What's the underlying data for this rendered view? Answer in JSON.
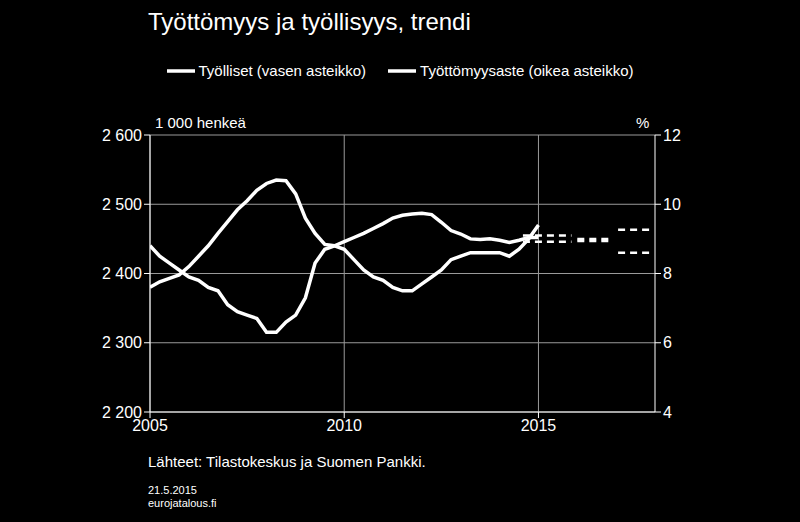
{
  "chart_data": {
    "type": "line",
    "title": "Työttömyys ja työllisyys, trendi",
    "ylabel": "1 000 henkeä",
    "y2label": "%",
    "source": "Lähteet:  Tilastokeskus ja Suomen Pankki.",
    "date": "21.5.2015",
    "site": "eurojatalous.fi",
    "legend": "top",
    "grid": true,
    "xlim": [
      2005,
      2018
    ],
    "xticks": [
      2005,
      2010,
      2015
    ],
    "ylim": [
      2200,
      2600
    ],
    "yticks": [
      {
        "value": 2200,
        "label": "2 200"
      },
      {
        "value": 2300,
        "label": "2 300"
      },
      {
        "value": 2400,
        "label": "2 400"
      },
      {
        "value": 2500,
        "label": "2 500"
      },
      {
        "value": 2600,
        "label": "2 600"
      }
    ],
    "y2lim": [
      4,
      12
    ],
    "y2ticks": [
      4,
      6,
      8,
      10,
      12
    ],
    "series": [
      {
        "name": "Työlliset (vasen asteikko)",
        "axis": "y",
        "color": "#ffffff",
        "line_style": "solid",
        "x": [
          2005.0,
          2005.25,
          2005.5,
          2005.75,
          2006.0,
          2006.25,
          2006.5,
          2006.75,
          2007.0,
          2007.25,
          2007.5,
          2007.75,
          2008.0,
          2008.25,
          2008.5,
          2008.75,
          2009.0,
          2009.25,
          2009.5,
          2009.75,
          2010.0,
          2010.25,
          2010.5,
          2010.75,
          2011.0,
          2011.25,
          2011.5,
          2011.75,
          2012.0,
          2012.25,
          2012.5,
          2012.75,
          2013.0,
          2013.25,
          2013.5,
          2013.75,
          2014.0,
          2014.25,
          2014.5,
          2014.75,
          2015.0
        ],
        "values": [
          2380,
          2388,
          2393,
          2398,
          2410,
          2425,
          2440,
          2458,
          2475,
          2492,
          2505,
          2520,
          2530,
          2535,
          2534,
          2515,
          2480,
          2458,
          2442,
          2440,
          2446,
          2452,
          2458,
          2465,
          2472,
          2480,
          2484,
          2486,
          2487,
          2485,
          2474,
          2462,
          2457,
          2450,
          2449,
          2450,
          2448,
          2445,
          2448,
          2452,
          2452
        ]
      },
      {
        "name": "Työttömyysaste (oikea asteikko)",
        "axis": "y2",
        "color": "#ffffff",
        "line_style": "solid",
        "x": [
          2005.0,
          2005.25,
          2005.5,
          2005.75,
          2006.0,
          2006.25,
          2006.5,
          2006.75,
          2007.0,
          2007.25,
          2007.5,
          2007.75,
          2008.0,
          2008.25,
          2008.5,
          2008.75,
          2009.0,
          2009.25,
          2009.5,
          2009.75,
          2010.0,
          2010.25,
          2010.5,
          2010.75,
          2011.0,
          2011.25,
          2011.5,
          2011.75,
          2012.0,
          2012.25,
          2012.5,
          2012.75,
          2013.0,
          2013.25,
          2013.5,
          2013.75,
          2014.0,
          2014.25,
          2014.5,
          2014.75,
          2015.0
        ],
        "values": [
          8.8,
          8.5,
          8.3,
          8.1,
          7.9,
          7.8,
          7.6,
          7.5,
          7.1,
          6.9,
          6.8,
          6.7,
          6.3,
          6.3,
          6.6,
          6.8,
          7.3,
          8.3,
          8.7,
          8.8,
          8.7,
          8.4,
          8.1,
          7.9,
          7.8,
          7.6,
          7.5,
          7.5,
          7.7,
          7.9,
          8.1,
          8.4,
          8.5,
          8.6,
          8.6,
          8.6,
          8.6,
          8.5,
          8.7,
          9.0,
          9.4
        ]
      },
      {
        "axis": "y",
        "color": "#ffffff",
        "line_style": "dashed",
        "x": [
          2014.6,
          2015.85,
          2015.9,
          2016.0,
          2016.9,
          2016.95,
          2017.05,
          2017.9
        ],
        "values": [
          2446,
          2446,
          null,
          2447,
          2447,
          null,
          2463,
          2463
        ]
      },
      {
        "axis": "y2",
        "color": "#ffffff",
        "line_style": "dashed",
        "x": [
          2014.6,
          2015.85,
          2015.9,
          2016.0,
          2016.9,
          2016.95,
          2017.05,
          2017.9
        ],
        "values": [
          9.1,
          9.1,
          null,
          9.0,
          9.0,
          null,
          8.6,
          8.6
        ]
      }
    ]
  }
}
